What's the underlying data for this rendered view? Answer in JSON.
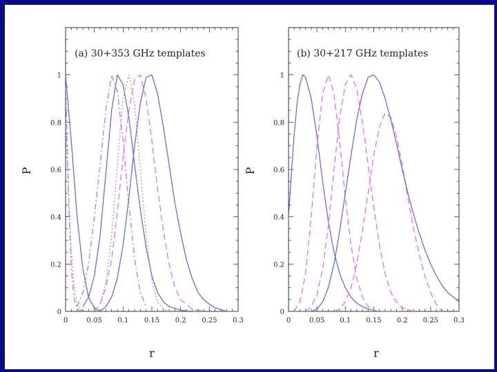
{
  "colors": {
    "frame": "#0a0a8c",
    "solid_blue": "#6a6ad8",
    "dashed_magenta": "#e070e0",
    "dashdot_magenta": "#c86ad8",
    "dotted_gray": "#9a9a9a",
    "axis": "#333333"
  },
  "chart_data": [
    {
      "type": "line",
      "panel_label": "(a) 30+353 GHz templates",
      "xlabel": "r",
      "ylabel": "P",
      "xlim": [
        0,
        0.3
      ],
      "ylim": [
        0,
        1.2
      ],
      "xticks": [
        0,
        0.05,
        0.1,
        0.15,
        0.2,
        0.25,
        0.3
      ],
      "xtick_labels": [
        "0",
        "0.05",
        "0.1",
        "0.15",
        "0.2",
        "0.25",
        "0.3"
      ],
      "yticks": [
        0,
        0.2,
        0.4,
        0.6,
        0.8,
        1
      ],
      "ytick_labels": [
        "0",
        "0.2",
        "0.4",
        "0.6",
        "0.8",
        "1"
      ],
      "grid": false,
      "series": [
        {
          "style": "solid",
          "color": "#6a6ad8",
          "x": [
            0,
            0.01,
            0.02,
            0.03,
            0.04,
            0.05,
            0.06,
            0.08
          ],
          "y": [
            1.0,
            0.72,
            0.4,
            0.18,
            0.06,
            0.015,
            0.0,
            0.0
          ]
        },
        {
          "style": "dashdot",
          "color": "#c86ad8",
          "x": [
            0,
            0.003,
            0.006,
            0.01,
            0.015,
            0.02,
            0.03
          ],
          "y": [
            0.95,
            0.7,
            0.42,
            0.18,
            0.05,
            0.01,
            0.0
          ]
        },
        {
          "style": "dotted",
          "color": "#9a9a9a",
          "x": [
            0,
            0.005,
            0.01,
            0.015,
            0.02,
            0.03
          ],
          "y": [
            0.8,
            0.5,
            0.25,
            0.1,
            0.03,
            0.0
          ]
        },
        {
          "style": "dashdot",
          "color": "#c86ad8",
          "x": [
            0.02,
            0.03,
            0.04,
            0.05,
            0.06,
            0.07,
            0.08,
            0.09,
            0.1,
            0.11,
            0.12,
            0.13,
            0.14
          ],
          "y": [
            0.02,
            0.08,
            0.2,
            0.4,
            0.62,
            0.85,
            1.0,
            0.93,
            0.72,
            0.45,
            0.22,
            0.08,
            0.02
          ]
        },
        {
          "style": "solid",
          "color": "#6a6ad8",
          "x": [
            0.03,
            0.04,
            0.05,
            0.06,
            0.07,
            0.08,
            0.09,
            0.1,
            0.11,
            0.12,
            0.13,
            0.14,
            0.15,
            0.16,
            0.17,
            0.18,
            0.2,
            0.22
          ],
          "y": [
            0.02,
            0.06,
            0.15,
            0.32,
            0.58,
            0.85,
            1.0,
            0.96,
            0.82,
            0.62,
            0.43,
            0.27,
            0.15,
            0.08,
            0.04,
            0.02,
            0.005,
            0.0
          ]
        },
        {
          "style": "dotted",
          "color": "#9a9a9a",
          "x": [
            0.06,
            0.07,
            0.08,
            0.09,
            0.1,
            0.11,
            0.12,
            0.13,
            0.14,
            0.15,
            0.16,
            0.17,
            0.18
          ],
          "y": [
            0.03,
            0.12,
            0.32,
            0.62,
            0.9,
            1.0,
            0.88,
            0.6,
            0.32,
            0.13,
            0.04,
            0.01,
            0.0
          ]
        },
        {
          "style": "dashed",
          "color": "#e070e0",
          "x": [
            0.05,
            0.06,
            0.07,
            0.08,
            0.09,
            0.1,
            0.11,
            0.12,
            0.13,
            0.14,
            0.15,
            0.16,
            0.17,
            0.18,
            0.19,
            0.2,
            0.22,
            0.24
          ],
          "y": [
            0.0,
            0.03,
            0.1,
            0.22,
            0.42,
            0.65,
            0.85,
            0.98,
            1.0,
            0.9,
            0.72,
            0.52,
            0.34,
            0.2,
            0.1,
            0.05,
            0.01,
            0.0
          ]
        },
        {
          "style": "solid",
          "color": "#6a6ad8",
          "x": [
            0.06,
            0.07,
            0.08,
            0.09,
            0.1,
            0.11,
            0.12,
            0.13,
            0.14,
            0.15,
            0.16,
            0.17,
            0.18,
            0.19,
            0.2,
            0.21,
            0.22,
            0.23,
            0.24,
            0.25,
            0.26,
            0.27,
            0.28,
            0.3
          ],
          "y": [
            0.0,
            0.02,
            0.06,
            0.14,
            0.28,
            0.48,
            0.7,
            0.88,
            0.99,
            1.0,
            0.92,
            0.78,
            0.62,
            0.46,
            0.33,
            0.22,
            0.14,
            0.08,
            0.05,
            0.03,
            0.015,
            0.008,
            0.0,
            0.0
          ]
        }
      ]
    },
    {
      "type": "line",
      "panel_label": "(b) 30+217 GHz templates",
      "xlabel": "r",
      "ylabel": "P",
      "xlim": [
        0,
        0.3
      ],
      "ylim": [
        0,
        1.2
      ],
      "xticks": [
        0,
        0.05,
        0.1,
        0.15,
        0.2,
        0.25,
        0.3
      ],
      "xtick_labels": [
        "0",
        "0.05",
        "0.1",
        "0.15",
        "0.2",
        "0.25",
        "0.3"
      ],
      "yticks": [
        0,
        0.2,
        0.4,
        0.6,
        0.8,
        1
      ],
      "ytick_labels": [
        "0",
        "0.2",
        "0.4",
        "0.6",
        "0.8",
        "1"
      ],
      "grid": false,
      "series": [
        {
          "style": "solid",
          "color": "#6a6ad8",
          "x": [
            0,
            0.005,
            0.01,
            0.015,
            0.02,
            0.025,
            0.03,
            0.04,
            0.05,
            0.06,
            0.07,
            0.08,
            0.09,
            0.1,
            0.11,
            0.12,
            0.13,
            0.14,
            0.15,
            0.16,
            0.18,
            0.2
          ],
          "y": [
            0.4,
            0.58,
            0.75,
            0.88,
            0.96,
            1.0,
            0.99,
            0.9,
            0.74,
            0.55,
            0.38,
            0.25,
            0.16,
            0.1,
            0.06,
            0.035,
            0.02,
            0.01,
            0.005,
            0.0,
            0.0,
            0.0
          ]
        },
        {
          "style": "dashed",
          "color": "#e070e0",
          "x": [
            0.01,
            0.02,
            0.03,
            0.04,
            0.05,
            0.06,
            0.07,
            0.08,
            0.09,
            0.1,
            0.11,
            0.12,
            0.13,
            0.14,
            0.15,
            0.16
          ],
          "y": [
            0.0,
            0.04,
            0.16,
            0.4,
            0.7,
            0.92,
            1.0,
            0.92,
            0.72,
            0.48,
            0.28,
            0.14,
            0.06,
            0.02,
            0.005,
            0.0
          ]
        },
        {
          "style": "dashed",
          "color": "#e070e0",
          "x": [
            0.03,
            0.04,
            0.05,
            0.06,
            0.07,
            0.08,
            0.09,
            0.1,
            0.11,
            0.12,
            0.13,
            0.14,
            0.15,
            0.16,
            0.17,
            0.18,
            0.19,
            0.2,
            0.22
          ],
          "y": [
            0.0,
            0.02,
            0.07,
            0.18,
            0.36,
            0.6,
            0.82,
            0.96,
            1.0,
            0.94,
            0.8,
            0.62,
            0.44,
            0.28,
            0.16,
            0.08,
            0.04,
            0.015,
            0.0
          ]
        },
        {
          "style": "dashed",
          "color": "#e070e0",
          "x": [
            0.08,
            0.09,
            0.1,
            0.11,
            0.12,
            0.13,
            0.14,
            0.15,
            0.16,
            0.17,
            0.18,
            0.19,
            0.2,
            0.21,
            0.22,
            0.23,
            0.24,
            0.25,
            0.26,
            0.27
          ],
          "y": [
            0.0,
            0.01,
            0.04,
            0.1,
            0.2,
            0.34,
            0.5,
            0.66,
            0.78,
            0.84,
            0.82,
            0.74,
            0.62,
            0.48,
            0.35,
            0.24,
            0.15,
            0.08,
            0.03,
            0.0
          ]
        },
        {
          "style": "solid",
          "color": "#6a6ad8",
          "x": [
            0.02,
            0.04,
            0.05,
            0.06,
            0.07,
            0.08,
            0.09,
            0.1,
            0.11,
            0.12,
            0.13,
            0.14,
            0.15,
            0.16,
            0.17,
            0.18,
            0.19,
            0.2,
            0.21,
            0.22,
            0.23,
            0.24,
            0.25,
            0.26,
            0.27,
            0.28,
            0.29,
            0.3
          ],
          "y": [
            0.0,
            0.0,
            0.01,
            0.04,
            0.1,
            0.2,
            0.34,
            0.5,
            0.66,
            0.81,
            0.92,
            0.99,
            1.0,
            0.97,
            0.9,
            0.81,
            0.71,
            0.6,
            0.5,
            0.41,
            0.33,
            0.26,
            0.2,
            0.15,
            0.11,
            0.08,
            0.06,
            0.04
          ]
        }
      ]
    }
  ]
}
